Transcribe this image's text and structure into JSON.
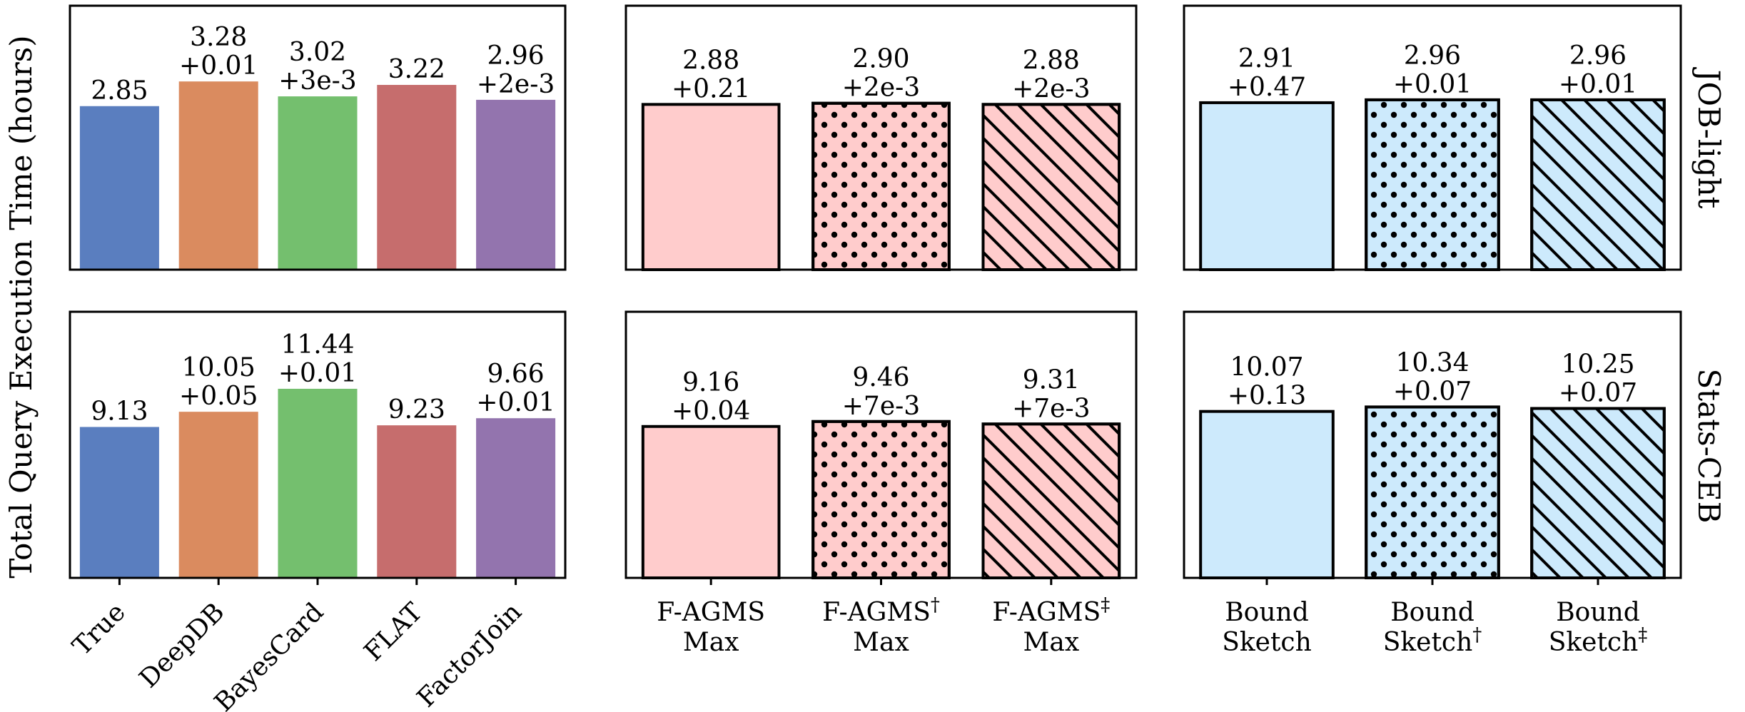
{
  "ylabel": "Total Query Execution Time (hours)",
  "row_labels": [
    "JOB-light",
    "Stats-CEB"
  ],
  "colors": {
    "True": "#5a7ebf",
    "DeepDB": "#da8b5f",
    "BayesCard": "#74bf6e",
    "FLAT": "#c66d6d",
    "FactorJoin": "#9374ae",
    "fagms": "#ffcccc",
    "bound": "#cdeafc",
    "edge": "#000000"
  },
  "chart_data": [
    {
      "type": "bar",
      "row": "JOB-light",
      "categories": [
        "True",
        "DeepDB",
        "BayesCard",
        "FLAT",
        "FactorJoin"
      ],
      "values": [
        2.85,
        3.28,
        3.02,
        3.22,
        2.96
      ],
      "label_top": [
        "",
        "3.28",
        "3.02",
        "",
        "2.96"
      ],
      "label_bottom": [
        "2.85",
        "+0.01",
        "+3e-3",
        "3.22",
        "+2e-3"
      ],
      "fills": [
        "True",
        "DeepDB",
        "BayesCard",
        "FLAT",
        "FactorJoin"
      ],
      "patterns": [
        "none",
        "none",
        "none",
        "none",
        "none"
      ],
      "outlined": false,
      "ylim": [
        0,
        4.6
      ]
    },
    {
      "type": "bar",
      "row": "JOB-light",
      "categories": [
        "F-AGMS Max",
        "F-AGMS† Max",
        "F-AGMS‡ Max"
      ],
      "values": [
        2.88,
        2.9,
        2.88
      ],
      "label_top": [
        "2.88",
        "2.90",
        "2.88"
      ],
      "label_bottom": [
        "+0.21",
        "+2e-3",
        "+2e-3"
      ],
      "fills": [
        "fagms",
        "fagms",
        "fagms"
      ],
      "patterns": [
        "none",
        "dots",
        "hatch"
      ],
      "outlined": true,
      "ylim": [
        0,
        4.6
      ]
    },
    {
      "type": "bar",
      "row": "JOB-light",
      "categories": [
        "Bound Sketch",
        "Bound Sketch†",
        "Bound Sketch‡"
      ],
      "values": [
        2.91,
        2.96,
        2.96
      ],
      "label_top": [
        "2.91",
        "2.96",
        "2.96"
      ],
      "label_bottom": [
        "+0.47",
        "+0.01",
        "+0.01"
      ],
      "fills": [
        "bound",
        "bound",
        "bound"
      ],
      "patterns": [
        "none",
        "dots",
        "hatch"
      ],
      "outlined": true,
      "ylim": [
        0,
        4.6
      ]
    },
    {
      "type": "bar",
      "row": "Stats-CEB",
      "categories": [
        "True",
        "DeepDB",
        "BayesCard",
        "FLAT",
        "FactorJoin"
      ],
      "values": [
        9.13,
        10.05,
        11.44,
        9.23,
        9.66
      ],
      "label_top": [
        "",
        "10.05",
        "11.44",
        "",
        "9.66"
      ],
      "label_bottom": [
        "9.13",
        "+0.05",
        "+0.01",
        "9.23",
        "+0.01"
      ],
      "fills": [
        "True",
        "DeepDB",
        "BayesCard",
        "FLAT",
        "FactorJoin"
      ],
      "patterns": [
        "none",
        "none",
        "none",
        "none",
        "none"
      ],
      "outlined": false,
      "ylim": [
        0,
        16.1
      ]
    },
    {
      "type": "bar",
      "row": "Stats-CEB",
      "categories": [
        "F-AGMS Max",
        "F-AGMS† Max",
        "F-AGMS‡ Max"
      ],
      "values": [
        9.16,
        9.46,
        9.31
      ],
      "label_top": [
        "9.16",
        "9.46",
        "9.31"
      ],
      "label_bottom": [
        "+0.04",
        "+7e-3",
        "+7e-3"
      ],
      "fills": [
        "fagms",
        "fagms",
        "fagms"
      ],
      "patterns": [
        "none",
        "dots",
        "hatch"
      ],
      "outlined": true,
      "ylim": [
        0,
        16.1
      ]
    },
    {
      "type": "bar",
      "row": "Stats-CEB",
      "categories": [
        "Bound Sketch",
        "Bound Sketch†",
        "Bound Sketch‡"
      ],
      "values": [
        10.07,
        10.34,
        10.25
      ],
      "label_top": [
        "10.07",
        "10.34",
        "10.25"
      ],
      "label_bottom": [
        "+0.13",
        "+0.07",
        "+0.07"
      ],
      "fills": [
        "bound",
        "bound",
        "bound"
      ],
      "patterns": [
        "none",
        "dots",
        "hatch"
      ],
      "outlined": true,
      "ylim": [
        0,
        16.1
      ]
    }
  ],
  "x_ticks": [
    {
      "style": "rotated",
      "labels": [
        "True",
        "DeepDB",
        "BayesCard",
        "FLAT",
        "FactorJoin"
      ]
    },
    {
      "style": "two-line",
      "lines1": [
        "F-AGMS",
        "F-AGMS",
        "F-AGMS"
      ],
      "sups": [
        "",
        "†",
        "‡"
      ],
      "lines2": [
        "Max",
        "Max",
        "Max"
      ]
    },
    {
      "style": "two-line-sup2",
      "lines1": [
        "Bound",
        "Bound",
        "Bound"
      ],
      "lines2": [
        "Sketch",
        "Sketch",
        "Sketch"
      ],
      "sups": [
        "",
        "†",
        "‡"
      ]
    }
  ]
}
